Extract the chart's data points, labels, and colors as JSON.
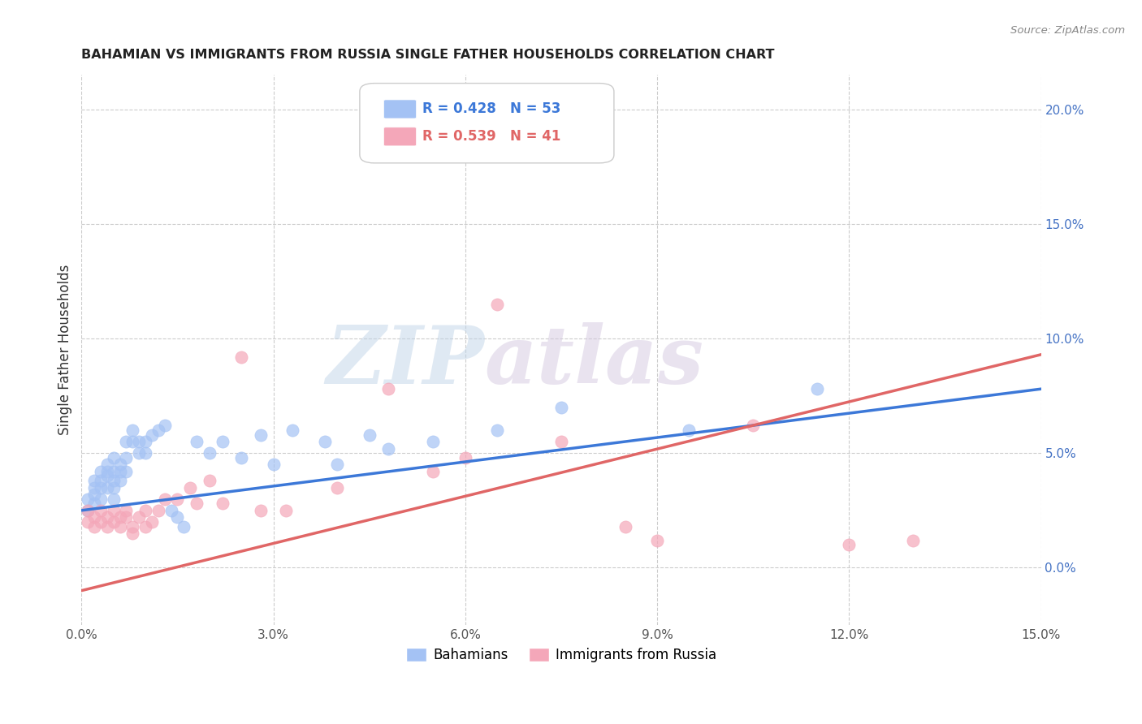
{
  "title": "BAHAMIAN VS IMMIGRANTS FROM RUSSIA SINGLE FATHER HOUSEHOLDS CORRELATION CHART",
  "source": "Source: ZipAtlas.com",
  "ylabel": "Single Father Households",
  "xlim": [
    0.0,
    0.15
  ],
  "ylim": [
    -0.025,
    0.215
  ],
  "right_yticks": [
    0.0,
    0.05,
    0.1,
    0.15,
    0.2
  ],
  "right_yticklabels": [
    "0.0%",
    "5.0%",
    "10.0%",
    "15.0%",
    "20.0%"
  ],
  "xticks": [
    0.0,
    0.03,
    0.06,
    0.09,
    0.12,
    0.15
  ],
  "xticklabels": [
    "0.0%",
    "3.0%",
    "6.0%",
    "9.0%",
    "12.0%",
    "15.0%"
  ],
  "blue_color": "#a4c2f4",
  "pink_color": "#f4a7b9",
  "blue_line_color": "#3c78d8",
  "pink_line_color": "#e06666",
  "legend_R_blue": "R = 0.428",
  "legend_N_blue": "N = 53",
  "legend_R_pink": "R = 0.539",
  "legend_N_pink": "N = 41",
  "blue_scatter_x": [
    0.001,
    0.001,
    0.002,
    0.002,
    0.002,
    0.002,
    0.003,
    0.003,
    0.003,
    0.003,
    0.004,
    0.004,
    0.004,
    0.004,
    0.005,
    0.005,
    0.005,
    0.005,
    0.005,
    0.006,
    0.006,
    0.006,
    0.007,
    0.007,
    0.007,
    0.008,
    0.008,
    0.009,
    0.009,
    0.01,
    0.01,
    0.011,
    0.012,
    0.013,
    0.014,
    0.015,
    0.016,
    0.018,
    0.02,
    0.022,
    0.025,
    0.028,
    0.03,
    0.033,
    0.038,
    0.04,
    0.045,
    0.048,
    0.055,
    0.065,
    0.075,
    0.095,
    0.115
  ],
  "blue_scatter_y": [
    0.025,
    0.03,
    0.028,
    0.032,
    0.035,
    0.038,
    0.03,
    0.035,
    0.038,
    0.042,
    0.035,
    0.04,
    0.042,
    0.045,
    0.03,
    0.035,
    0.038,
    0.042,
    0.048,
    0.038,
    0.042,
    0.045,
    0.055,
    0.042,
    0.048,
    0.055,
    0.06,
    0.05,
    0.055,
    0.05,
    0.055,
    0.058,
    0.06,
    0.062,
    0.025,
    0.022,
    0.018,
    0.055,
    0.05,
    0.055,
    0.048,
    0.058,
    0.045,
    0.06,
    0.055,
    0.045,
    0.058,
    0.052,
    0.055,
    0.06,
    0.07,
    0.06,
    0.078
  ],
  "pink_scatter_x": [
    0.001,
    0.001,
    0.002,
    0.002,
    0.003,
    0.003,
    0.004,
    0.004,
    0.005,
    0.005,
    0.006,
    0.006,
    0.007,
    0.007,
    0.008,
    0.008,
    0.009,
    0.01,
    0.01,
    0.011,
    0.012,
    0.013,
    0.015,
    0.017,
    0.018,
    0.02,
    0.022,
    0.025,
    0.028,
    0.032,
    0.04,
    0.048,
    0.055,
    0.06,
    0.065,
    0.075,
    0.085,
    0.09,
    0.105,
    0.12,
    0.13
  ],
  "pink_scatter_y": [
    0.02,
    0.025,
    0.018,
    0.022,
    0.02,
    0.025,
    0.018,
    0.022,
    0.02,
    0.025,
    0.022,
    0.018,
    0.022,
    0.025,
    0.015,
    0.018,
    0.022,
    0.018,
    0.025,
    0.02,
    0.025,
    0.03,
    0.03,
    0.035,
    0.028,
    0.038,
    0.028,
    0.092,
    0.025,
    0.025,
    0.035,
    0.078,
    0.042,
    0.048,
    0.115,
    0.055,
    0.018,
    0.012,
    0.062,
    0.01,
    0.012
  ],
  "watermark_zip": "ZIP",
  "watermark_atlas": "atlas",
  "background_color": "#ffffff",
  "grid_color": "#cccccc"
}
